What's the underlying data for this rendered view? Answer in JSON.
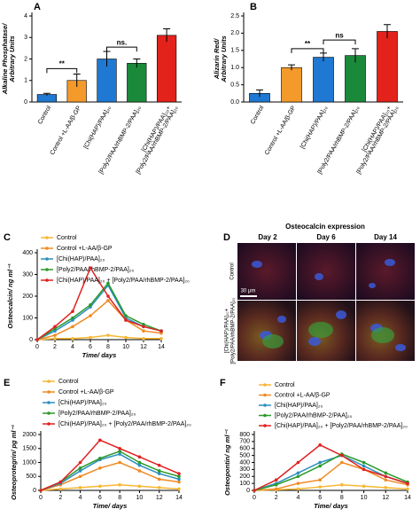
{
  "chart_data": [
    {
      "type": "bar",
      "panel": "A",
      "ylabel": [
        "Alkaline Phosphatase/",
        "Arbitrary Units"
      ],
      "categories": [
        "Control",
        "Control +L-AA/β-GP",
        "[Chi(HAP)/PAA]₂₀",
        "[Poly2/PAA/rhBMP-2/PAA]₂₀",
        [
          "[Chi(HAP)/PAA]₂₀+",
          "[Poly2/PAA/rhBMP-2/PAA]₂₀"
        ]
      ],
      "values": [
        0.35,
        1.0,
        2.0,
        1.8,
        3.1
      ],
      "errors": [
        0.05,
        0.3,
        0.35,
        0.2,
        0.3
      ],
      "colors": [
        "#1f78d1",
        "#f39a2b",
        "#1f78d1",
        "#1a8a3a",
        "#e3221b"
      ],
      "ylim": [
        0,
        4
      ],
      "yticks": [
        0,
        1,
        2,
        3,
        4
      ],
      "annotations": [
        "**",
        "ns."
      ]
    },
    {
      "type": "bar",
      "panel": "B",
      "ylabel": [
        "Alizarin Red/",
        "Arbitrary Units"
      ],
      "categories": [
        "Control",
        "Control +L-AA/β-GP",
        "[Chi(HAP)/PAA]₂₀",
        "[Poly2/PAA/rhBMP-2/PAA]₂₀",
        [
          "[Chi(HAP)/PAA]₂₀+",
          "[Poly2/PAA/rhBMP-2/PAA]₂₀"
        ]
      ],
      "values": [
        0.25,
        1.0,
        1.3,
        1.35,
        2.05
      ],
      "errors": [
        0.1,
        0.08,
        0.12,
        0.2,
        0.2
      ],
      "colors": [
        "#1f78d1",
        "#f39a2b",
        "#1f78d1",
        "#1a8a3a",
        "#e3221b"
      ],
      "ylim": [
        0,
        2.5
      ],
      "yticks": [
        {
          "value": 0,
          "label": "0.0"
        },
        0.5,
        {
          "value": 1,
          "label": "1.0"
        },
        1.5,
        {
          "value": 2,
          "label": "2.0"
        },
        2.5
      ],
      "annotations": [
        "**",
        "ns"
      ]
    },
    {
      "type": "line",
      "panel": "C",
      "ylabel": "Osteocalcin/ ng ml⁻¹",
      "xlabel": "Time/ days",
      "x": [
        0,
        2,
        4,
        6,
        8,
        10,
        12,
        14
      ],
      "xlim": [
        0,
        14
      ],
      "xticks": [
        0,
        2,
        4,
        6,
        8,
        10,
        12,
        14
      ],
      "ylim": [
        0,
        400
      ],
      "yticks": [
        0,
        100,
        200,
        300,
        400
      ],
      "series": [
        {
          "name": "Control",
          "color": "#f7b733",
          "values": [
            0,
            5,
            5,
            10,
            20,
            10,
            5,
            5
          ]
        },
        {
          "name": "Control +L-AA/β-GP",
          "color": "#f08a24",
          "values": [
            0,
            20,
            60,
            110,
            180,
            90,
            40,
            30
          ]
        },
        {
          "name": "[Chi(HAP)/PAA]₂₀",
          "color": "#2b8fbf",
          "values": [
            0,
            40,
            90,
            150,
            250,
            100,
            60,
            40
          ]
        },
        {
          "name": "[Poly2/PAA/rhBMP-2/PAA]₂₀",
          "color": "#2a9a2a",
          "values": [
            0,
            50,
            100,
            160,
            260,
            110,
            70,
            40
          ]
        },
        {
          "name": "[Chi(HAP)/PAA]₂₀ + [Poly2/PAA/rhBMP-2/PAA]₂₀",
          "color": "#e02020",
          "values": [
            0,
            60,
            130,
            330,
            200,
            90,
            60,
            40
          ]
        }
      ]
    },
    {
      "type": "line",
      "panel": "E",
      "ylabel": "Osteoprotegrin/ pg ml⁻¹",
      "xlabel": "Time/ days",
      "x": [
        0,
        2,
        4,
        6,
        8,
        10,
        12,
        14
      ],
      "xlim": [
        0,
        14
      ],
      "xticks": [
        0,
        2,
        4,
        6,
        8,
        10,
        12,
        14
      ],
      "ylim": [
        0,
        2000
      ],
      "yticks": [
        0,
        500,
        1000,
        1500,
        2000
      ],
      "series": [
        {
          "name": "Control",
          "color": "#f7b733",
          "values": [
            0,
            50,
            100,
            150,
            200,
            150,
            100,
            50
          ]
        },
        {
          "name": "Control +L-AA/β-GP",
          "color": "#f08a24",
          "values": [
            0,
            200,
            500,
            800,
            1000,
            700,
            400,
            300
          ]
        },
        {
          "name": "[Chi(HAP)/PAA]₂₀",
          "color": "#2b8fbf",
          "values": [
            0,
            250,
            700,
            1100,
            1300,
            900,
            600,
            400
          ]
        },
        {
          "name": "[Poly2/PAA/rhBMP-2/PAA]₂₀",
          "color": "#2a9a2a",
          "values": [
            0,
            300,
            800,
            1150,
            1400,
            1000,
            700,
            500
          ]
        },
        {
          "name": "[Chi(HAP)/PAA]₂₀ + [Poly2/PAA/rhBMP-2/PAA]₂₀",
          "color": "#e02020",
          "values": [
            0,
            300,
            1000,
            1800,
            1500,
            1200,
            900,
            600
          ]
        }
      ]
    },
    {
      "type": "line",
      "panel": "F",
      "ylabel": "Osteopontin/ ng ml⁻¹",
      "xlabel": "Time/ days",
      "x": [
        0,
        2,
        4,
        6,
        8,
        10,
        12,
        14
      ],
      "xlim": [
        0,
        14
      ],
      "xticks": [
        0,
        2,
        4,
        6,
        8,
        10,
        12,
        14
      ],
      "ylim": [
        0,
        800
      ],
      "yticks": [
        0,
        100,
        200,
        300,
        400,
        500,
        600,
        700,
        800
      ],
      "series": [
        {
          "name": "Control",
          "color": "#f7b733",
          "values": [
            0,
            10,
            20,
            50,
            80,
            60,
            40,
            20
          ]
        },
        {
          "name": "Control +L-AA/β-GP",
          "color": "#f08a24",
          "values": [
            0,
            20,
            100,
            150,
            400,
            300,
            150,
            80
          ]
        },
        {
          "name": "[Chi(HAP)/PAA]₂₀",
          "color": "#2b8fbf",
          "values": [
            0,
            100,
            250,
            400,
            500,
            350,
            200,
            100
          ]
        },
        {
          "name": "[Poly2/PAA/rhBMP-2/PAA]₂₀",
          "color": "#2a9a2a",
          "values": [
            0,
            80,
            200,
            350,
            520,
            400,
            250,
            120
          ]
        },
        {
          "name": "[Chi(HAP)/PAA]₂₀ + [Poly2/PAA/rhBMP-2/PAA]₂₀",
          "color": "#e02020",
          "values": [
            0,
            150,
            400,
            650,
            500,
            300,
            200,
            100
          ]
        }
      ]
    }
  ],
  "panel_d": {
    "panel": "D",
    "title": "Osteocalcin expression",
    "columns": [
      "Day 2",
      "Day 6",
      "Day 14"
    ],
    "rows": [
      "Control",
      [
        "[Chi(HAP)/PAA]₂₀+",
        "[Poly2/PAA/rhBMP-2/PAA]₂₀"
      ]
    ],
    "scale_bar": "30 μm"
  }
}
